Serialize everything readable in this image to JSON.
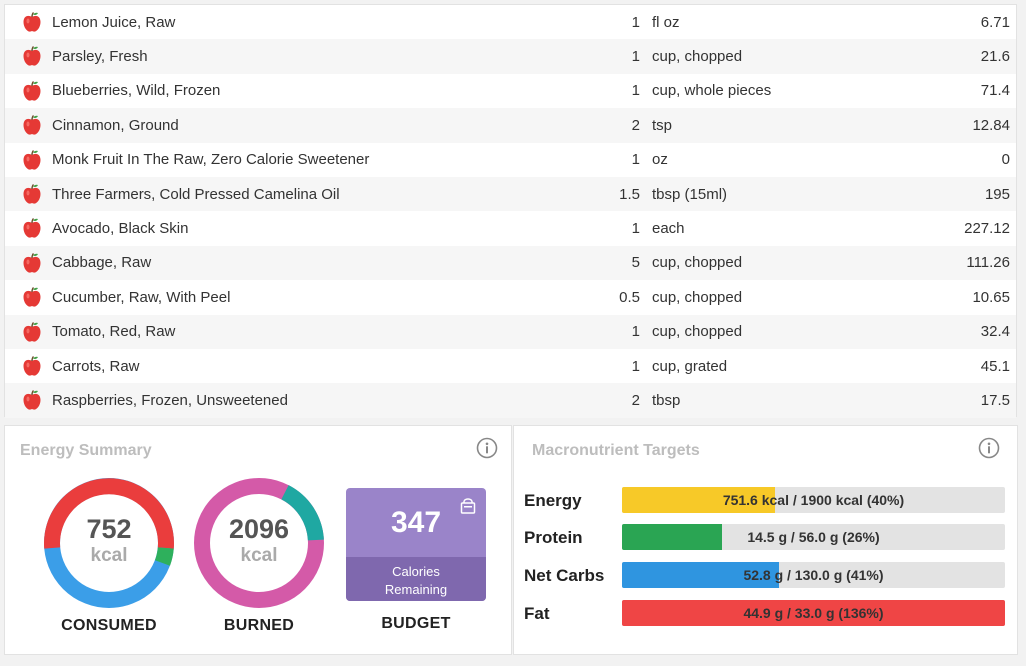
{
  "foods": [
    {
      "name": "Lemon Juice, Raw",
      "qty": "1",
      "unit": "fl oz",
      "kcal": "6.71"
    },
    {
      "name": "Parsley, Fresh",
      "qty": "1",
      "unit": "cup, chopped",
      "kcal": "21.6"
    },
    {
      "name": "Blueberries, Wild, Frozen",
      "qty": "1",
      "unit": "cup, whole pieces",
      "kcal": "71.4"
    },
    {
      "name": "Cinnamon, Ground",
      "qty": "2",
      "unit": "tsp",
      "kcal": "12.84"
    },
    {
      "name": "Monk Fruit In The Raw, Zero Calorie Sweetener",
      "qty": "1",
      "unit": "oz",
      "kcal": "0"
    },
    {
      "name": "Three Farmers, Cold Pressed Camelina Oil",
      "qty": "1.5",
      "unit": "tbsp (15ml)",
      "kcal": "195"
    },
    {
      "name": "Avocado, Black Skin",
      "qty": "1",
      "unit": "each",
      "kcal": "227.12"
    },
    {
      "name": "Cabbage, Raw",
      "qty": "5",
      "unit": "cup, chopped",
      "kcal": "111.26"
    },
    {
      "name": "Cucumber, Raw, With Peel",
      "qty": "0.5",
      "unit": "cup, chopped",
      "kcal": "10.65"
    },
    {
      "name": "Tomato, Red, Raw",
      "qty": "1",
      "unit": "cup, chopped",
      "kcal": "32.4"
    },
    {
      "name": "Carrots, Raw",
      "qty": "1",
      "unit": "cup, grated",
      "kcal": "45.1"
    },
    {
      "name": "Raspberries, Frozen, Unsweetened",
      "qty": "2",
      "unit": "tbsp",
      "kcal": "17.5"
    }
  ],
  "energy": {
    "title": "Energy Summary",
    "consumed": {
      "value": "752",
      "unit": "kcal",
      "caption": "CONSUMED"
    },
    "burned": {
      "value": "2096",
      "unit": "kcal",
      "caption": "BURNED"
    },
    "budget": {
      "value": "347",
      "sub1": "Calories",
      "sub2": "Remaining",
      "caption": "BUDGET"
    }
  },
  "macros": {
    "title": "Macronutrient Targets",
    "rows": [
      {
        "label": "Energy",
        "text": "751.6 kcal / 1900 kcal (40%)",
        "fill": 0.4,
        "color": "#f7c928"
      },
      {
        "label": "Protein",
        "text": "14.5 g / 56.0 g (26%)",
        "fill": 0.26,
        "color": "#2aa553"
      },
      {
        "label": "Net Carbs",
        "text": "52.8 g / 130.0 g (41%)",
        "fill": 0.41,
        "color": "#2f95e0"
      },
      {
        "label": "Fat",
        "text": "44.9 g / 33.0 g (136%)",
        "fill": 1.0,
        "color": "#ef4545"
      }
    ]
  },
  "colors": {
    "consumed_red": "#ea3d3d",
    "consumed_blue": "#3b9ee8",
    "consumed_green": "#2eb05c",
    "burned_pink": "#d45aa8",
    "burned_teal": "#1fa8a2",
    "budget_purple": "#9a84c9"
  },
  "icons": {
    "food": "apple-icon",
    "info": "info-icon",
    "budget": "lock-icon"
  }
}
